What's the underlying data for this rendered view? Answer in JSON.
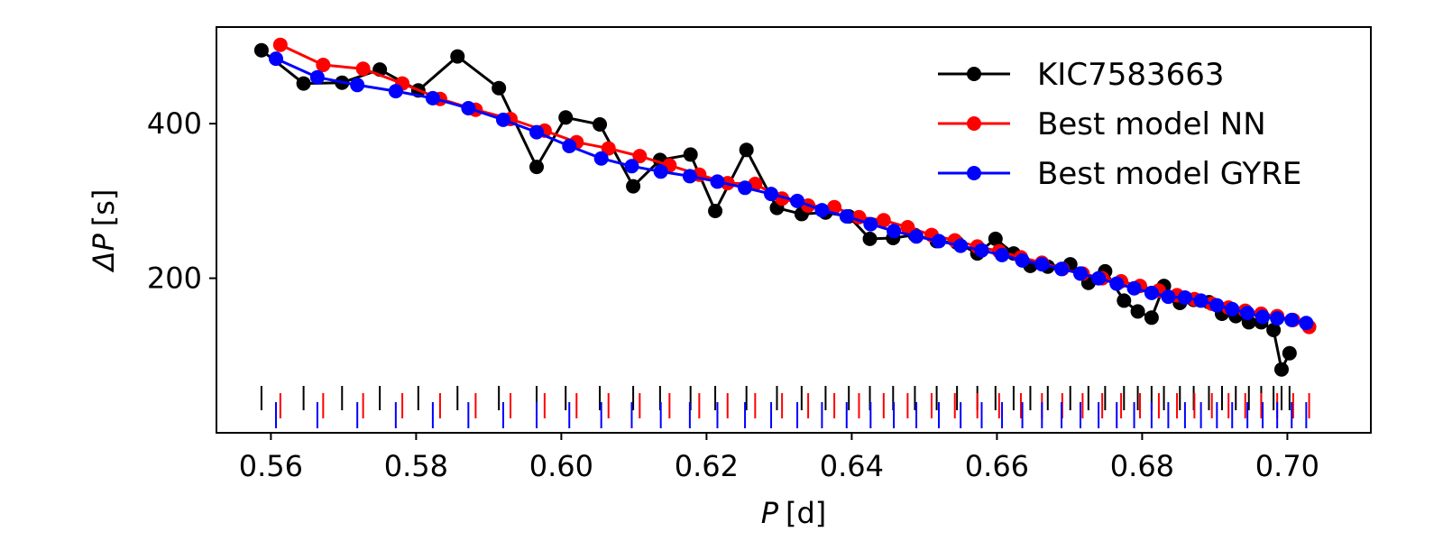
{
  "chart_data": {
    "type": "line",
    "title": "",
    "xlabel": "P [d]",
    "ylabel": "ΔP [s]",
    "xlabel_parts": {
      "var": "P",
      "unit": "[d]"
    },
    "ylabel_parts": {
      "var": "ΔP",
      "unit": "[s]"
    },
    "xlim": [
      0.5525,
      0.7115
    ],
    "ylim": [
      0,
      525
    ],
    "xticks": [
      0.56,
      0.58,
      0.6,
      0.62,
      0.64,
      0.66,
      0.68,
      0.7
    ],
    "xtick_labels": [
      "0.56",
      "0.58",
      "0.60",
      "0.62",
      "0.64",
      "0.66",
      "0.68",
      "0.70"
    ],
    "yticks": [
      200,
      400
    ],
    "ytick_labels": [
      "200",
      "400"
    ],
    "legend_position": "top-right",
    "series": [
      {
        "name": "KIC7583663",
        "color": "#000000",
        "points": [
          [
            0.5587,
            495
          ],
          [
            0.5645,
            452
          ],
          [
            0.5698,
            453
          ],
          [
            0.575,
            470
          ],
          [
            0.5803,
            443
          ],
          [
            0.5857,
            487
          ],
          [
            0.5914,
            446
          ],
          [
            0.5966,
            344
          ],
          [
            0.6006,
            408
          ],
          [
            0.6053,
            399
          ],
          [
            0.6099,
            319
          ],
          [
            0.6136,
            353
          ],
          [
            0.6178,
            360
          ],
          [
            0.6212,
            287
          ],
          [
            0.6255,
            366
          ],
          [
            0.6297,
            291
          ],
          [
            0.6331,
            283
          ],
          [
            0.6364,
            285
          ],
          [
            0.6396,
            280
          ],
          [
            0.6425,
            251
          ],
          [
            0.6457,
            252
          ],
          [
            0.6487,
            256
          ],
          [
            0.6517,
            248
          ],
          [
            0.6545,
            246
          ],
          [
            0.6573,
            232
          ],
          [
            0.6598,
            251
          ],
          [
            0.6623,
            232
          ],
          [
            0.6646,
            216
          ],
          [
            0.667,
            215
          ],
          [
            0.6701,
            218
          ],
          [
            0.6726,
            194
          ],
          [
            0.6749,
            209
          ],
          [
            0.6775,
            171
          ],
          [
            0.6794,
            157
          ],
          [
            0.6813,
            149
          ],
          [
            0.683,
            190
          ],
          [
            0.6852,
            168
          ],
          [
            0.6871,
            172
          ],
          [
            0.6892,
            169
          ],
          [
            0.691,
            154
          ],
          [
            0.6929,
            151
          ],
          [
            0.6947,
            143
          ],
          [
            0.6964,
            143
          ],
          [
            0.6981,
            133
          ],
          [
            0.6992,
            82
          ],
          [
            0.7003,
            103
          ]
        ]
      },
      {
        "name": "Best model NN",
        "color": "#ff0000",
        "points": [
          [
            0.5613,
            502
          ],
          [
            0.5672,
            476
          ],
          [
            0.5727,
            471
          ],
          [
            0.5781,
            452
          ],
          [
            0.5833,
            432
          ],
          [
            0.5882,
            418
          ],
          [
            0.593,
            406
          ],
          [
            0.5977,
            391
          ],
          [
            0.6021,
            376
          ],
          [
            0.6065,
            368
          ],
          [
            0.6108,
            358
          ],
          [
            0.6149,
            346
          ],
          [
            0.619,
            334
          ],
          [
            0.6229,
            323
          ],
          [
            0.6267,
            322
          ],
          [
            0.6304,
            303
          ],
          [
            0.634,
            294
          ],
          [
            0.6376,
            292
          ],
          [
            0.641,
            279
          ],
          [
            0.6444,
            275
          ],
          [
            0.6477,
            266
          ],
          [
            0.651,
            256
          ],
          [
            0.6542,
            249
          ],
          [
            0.6573,
            241
          ],
          [
            0.6603,
            235
          ],
          [
            0.6633,
            227
          ],
          [
            0.6662,
            220
          ],
          [
            0.669,
            212
          ],
          [
            0.6718,
            206
          ],
          [
            0.6745,
            200
          ],
          [
            0.6771,
            196
          ],
          [
            0.6797,
            190
          ],
          [
            0.6823,
            184
          ],
          [
            0.6848,
            178
          ],
          [
            0.6872,
            173
          ],
          [
            0.6896,
            167
          ],
          [
            0.6919,
            162
          ],
          [
            0.6942,
            158
          ],
          [
            0.6964,
            154
          ],
          [
            0.6986,
            151
          ],
          [
            0.7008,
            146
          ],
          [
            0.703,
            137
          ]
        ]
      },
      {
        "name": "Best model GYRE",
        "color": "#0000ff",
        "points": [
          [
            0.5607,
            484
          ],
          [
            0.5664,
            460
          ],
          [
            0.5719,
            450
          ],
          [
            0.5772,
            442
          ],
          [
            0.5823,
            433
          ],
          [
            0.5872,
            420
          ],
          [
            0.592,
            405
          ],
          [
            0.5966,
            389
          ],
          [
            0.6011,
            371
          ],
          [
            0.6055,
            355
          ],
          [
            0.6097,
            345
          ],
          [
            0.6137,
            338
          ],
          [
            0.6177,
            332
          ],
          [
            0.6215,
            325
          ],
          [
            0.6253,
            317
          ],
          [
            0.6289,
            309
          ],
          [
            0.6325,
            300
          ],
          [
            0.6359,
            288
          ],
          [
            0.6393,
            280
          ],
          [
            0.6426,
            270
          ],
          [
            0.6458,
            261
          ],
          [
            0.6489,
            254
          ],
          [
            0.652,
            248
          ],
          [
            0.655,
            242
          ],
          [
            0.6579,
            236
          ],
          [
            0.6607,
            230
          ],
          [
            0.6635,
            223
          ],
          [
            0.6662,
            218
          ],
          [
            0.6689,
            212
          ],
          [
            0.6715,
            206
          ],
          [
            0.674,
            200
          ],
          [
            0.6765,
            193
          ],
          [
            0.6789,
            187
          ],
          [
            0.6813,
            181
          ],
          [
            0.6836,
            176
          ],
          [
            0.6859,
            175
          ],
          [
            0.6881,
            171
          ],
          [
            0.6903,
            165
          ],
          [
            0.6924,
            160
          ],
          [
            0.6945,
            155
          ],
          [
            0.6966,
            150
          ],
          [
            0.6986,
            148
          ],
          [
            0.7006,
            146
          ],
          [
            0.7026,
            142
          ]
        ]
      }
    ]
  }
}
